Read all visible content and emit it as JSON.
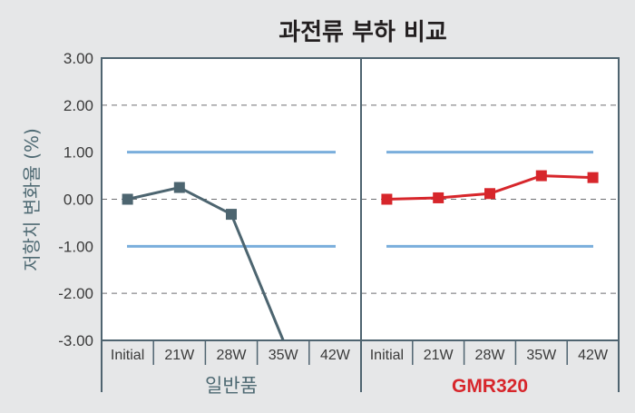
{
  "chart_data": {
    "type": "line",
    "title": "과전류 부하 비교",
    "ylabel": "저항치 변화율 (%)",
    "ylim": [
      -3.0,
      3.0
    ],
    "yticks": [
      "3.00",
      "2.00",
      "1.00",
      "0.00",
      "-1.00",
      "-2.00",
      "-3.00"
    ],
    "ytick_values": [
      3,
      2,
      1,
      0,
      -1,
      -2,
      -3
    ],
    "limit_lines": [
      1.0,
      -1.0
    ],
    "grid": "horizontal dashed",
    "categories": [
      "Initial",
      "21W",
      "28W",
      "35W",
      "42W"
    ],
    "panels": [
      {
        "name": "일반품",
        "color": "#4d6570",
        "values": [
          0.0,
          0.25,
          -0.32,
          -3.0,
          null
        ]
      },
      {
        "name": "GMR320",
        "color": "#d7262b",
        "values": [
          0.0,
          0.03,
          0.12,
          0.5,
          0.46
        ]
      }
    ],
    "colors": {
      "plot_bg": "#ffffff",
      "page_bg": "#e6e7e8",
      "grid": "#6d6e71",
      "limit": "#7aaedc",
      "axis": "#4f6470"
    }
  }
}
